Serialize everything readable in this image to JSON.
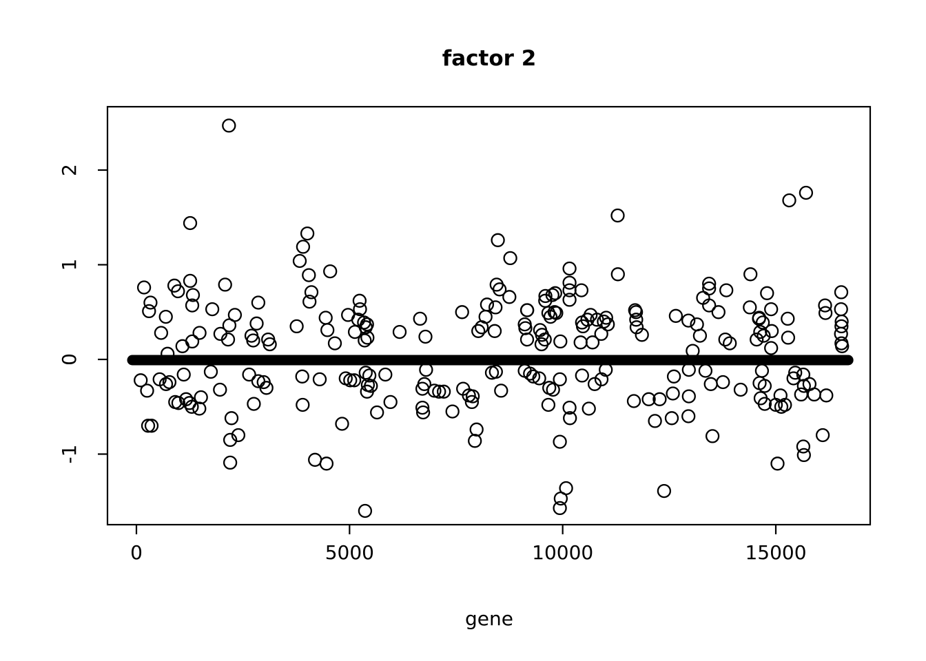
{
  "title": "factor 2",
  "chart_data": {
    "type": "scatter",
    "title": "factor 2",
    "xlabel": "gene",
    "ylabel": "",
    "xlim": [
      -680,
      17220
    ],
    "ylim": [
      -1.79,
      2.65
    ],
    "x_ticks": [
      0,
      5000,
      10000,
      15000
    ],
    "x_tick_labels": [
      "0",
      "5000",
      "10000",
      "15000"
    ],
    "y_ticks": [
      -1,
      0,
      1,
      2
    ],
    "y_tick_labels": [
      "-1",
      "0",
      "1",
      "2"
    ],
    "grid": false,
    "legend": "none",
    "marker": "open-circle",
    "marker_color": "#000000",
    "background": "#ffffff",
    "zero_band": {
      "x_start": 0,
      "x_end": 16700,
      "y": 0,
      "note": "dense run of points with value ~0 for nearly every gene, rendered as a thick black horizontal band"
    },
    "points": [
      [
        180,
        0.76
      ],
      [
        890,
        0.78
      ],
      [
        975,
        0.72
      ],
      [
        1260,
        0.83
      ],
      [
        1325,
        0.68
      ],
      [
        2080,
        0.79
      ],
      [
        1310,
        0.57
      ],
      [
        330,
        0.6
      ],
      [
        295,
        0.51
      ],
      [
        690,
        0.45
      ],
      [
        1780,
        0.53
      ],
      [
        2310,
        0.47
      ],
      [
        2860,
        0.6
      ],
      [
        2170,
        2.47
      ],
      [
        1260,
        1.44
      ],
      [
        580,
        0.28
      ],
      [
        1080,
        0.14
      ],
      [
        1310,
        0.19
      ],
      [
        1480,
        0.28
      ],
      [
        1970,
        0.27
      ],
      [
        2180,
        0.36
      ],
      [
        2150,
        0.21
      ],
      [
        2820,
        0.38
      ],
      [
        2700,
        0.25
      ],
      [
        2740,
        0.2
      ],
      [
        3090,
        0.21
      ],
      [
        3130,
        0.16
      ],
      [
        3760,
        0.35
      ],
      [
        730,
        0.06
      ],
      [
        100,
        -0.22
      ],
      [
        250,
        -0.33
      ],
      [
        545,
        -0.21
      ],
      [
        695,
        -0.26
      ],
      [
        775,
        -0.24
      ],
      [
        1110,
        -0.16
      ],
      [
        1745,
        -0.13
      ],
      [
        1960,
        -0.32
      ],
      [
        910,
        -0.45
      ],
      [
        985,
        -0.46
      ],
      [
        1165,
        -0.42
      ],
      [
        1245,
        -0.46
      ],
      [
        1300,
        -0.5
      ],
      [
        1515,
        -0.4
      ],
      [
        1475,
        -0.52
      ],
      [
        2645,
        -0.16
      ],
      [
        2860,
        -0.23
      ],
      [
        2985,
        -0.24
      ],
      [
        3050,
        -0.3
      ],
      [
        2755,
        -0.47
      ],
      [
        275,
        -0.7
      ],
      [
        355,
        -0.7
      ],
      [
        2230,
        -0.62
      ],
      [
        2200,
        -0.85
      ],
      [
        2390,
        -0.8
      ],
      [
        2200,
        -1.09
      ],
      [
        3890,
        -0.18
      ],
      [
        3900,
        -0.48
      ],
      [
        4010,
        1.33
      ],
      [
        3910,
        1.19
      ],
      [
        3830,
        1.04
      ],
      [
        4045,
        0.89
      ],
      [
        4545,
        0.93
      ],
      [
        4105,
        0.71
      ],
      [
        4060,
        0.61
      ],
      [
        5235,
        0.62
      ],
      [
        5245,
        0.53
      ],
      [
        4440,
        0.44
      ],
      [
        4965,
        0.47
      ],
      [
        5205,
        0.42
      ],
      [
        5340,
        0.39
      ],
      [
        5410,
        0.37
      ],
      [
        5380,
        0.34
      ],
      [
        5125,
        0.29
      ],
      [
        4480,
        0.31
      ],
      [
        4655,
        0.17
      ],
      [
        5420,
        0.23
      ],
      [
        5355,
        0.2
      ],
      [
        6175,
        0.29
      ],
      [
        6655,
        0.43
      ],
      [
        6780,
        0.24
      ],
      [
        7640,
        0.5
      ],
      [
        4300,
        -0.21
      ],
      [
        4910,
        -0.2
      ],
      [
        5015,
        -0.22
      ],
      [
        5110,
        -0.22
      ],
      [
        5380,
        -0.14
      ],
      [
        5465,
        -0.17
      ],
      [
        5430,
        -0.27
      ],
      [
        5500,
        -0.28
      ],
      [
        5410,
        -0.34
      ],
      [
        5840,
        -0.16
      ],
      [
        5960,
        -0.45
      ],
      [
        5645,
        -0.56
      ],
      [
        4825,
        -0.68
      ],
      [
        6795,
        -0.11
      ],
      [
        6755,
        -0.26
      ],
      [
        6710,
        -0.31
      ],
      [
        6710,
        -0.51
      ],
      [
        6725,
        -0.56
      ],
      [
        6990,
        -0.33
      ],
      [
        7100,
        -0.34
      ],
      [
        7210,
        -0.34
      ],
      [
        7415,
        -0.55
      ],
      [
        7665,
        -0.31
      ],
      [
        7800,
        -0.38
      ],
      [
        7890,
        -0.39
      ],
      [
        7870,
        -0.45
      ],
      [
        7980,
        -0.74
      ],
      [
        7940,
        -0.86
      ],
      [
        4190,
        -1.06
      ],
      [
        4460,
        -1.1
      ],
      [
        5365,
        -1.6
      ],
      [
        8480,
        1.26
      ],
      [
        8770,
        1.07
      ],
      [
        11290,
        1.52
      ],
      [
        10160,
        0.96
      ],
      [
        11295,
        0.9
      ],
      [
        10160,
        0.81
      ],
      [
        8450,
        0.79
      ],
      [
        8520,
        0.74
      ],
      [
        8750,
        0.66
      ],
      [
        8225,
        0.58
      ],
      [
        8425,
        0.55
      ],
      [
        8190,
        0.45
      ],
      [
        8100,
        0.34
      ],
      [
        8020,
        0.3
      ],
      [
        8405,
        0.3
      ],
      [
        9595,
        0.67
      ],
      [
        9760,
        0.68
      ],
      [
        9825,
        0.7
      ],
      [
        9590,
        0.62
      ],
      [
        10160,
        0.73
      ],
      [
        10440,
        0.73
      ],
      [
        10160,
        0.63
      ],
      [
        9165,
        0.52
      ],
      [
        9168,
        0.52
      ],
      [
        9665,
        0.49
      ],
      [
        9810,
        0.5
      ],
      [
        9850,
        0.49
      ],
      [
        9715,
        0.45
      ],
      [
        10655,
        0.47
      ],
      [
        11020,
        0.44
      ],
      [
        11720,
        0.5
      ],
      [
        9125,
        0.33
      ],
      [
        9165,
        0.21
      ],
      [
        9470,
        0.31
      ],
      [
        9515,
        0.26
      ],
      [
        9580,
        0.21
      ],
      [
        9505,
        0.16
      ],
      [
        9945,
        0.19
      ],
      [
        9110,
        0.37
      ],
      [
        10455,
        0.39
      ],
      [
        10580,
        0.42
      ],
      [
        10805,
        0.42
      ],
      [
        10965,
        0.4
      ],
      [
        11060,
        0.37
      ],
      [
        10475,
        0.35
      ],
      [
        10420,
        0.18
      ],
      [
        10700,
        0.18
      ],
      [
        10905,
        0.27
      ],
      [
        11700,
        0.52
      ],
      [
        11725,
        0.42
      ],
      [
        11735,
        0.34
      ],
      [
        11860,
        0.26
      ],
      [
        12655,
        0.46
      ],
      [
        12950,
        0.41
      ],
      [
        13150,
        0.37
      ],
      [
        8435,
        -0.13
      ],
      [
        8555,
        -0.33
      ],
      [
        9110,
        -0.12
      ],
      [
        9235,
        -0.15
      ],
      [
        9310,
        -0.18
      ],
      [
        9450,
        -0.2
      ],
      [
        9685,
        -0.3
      ],
      [
        9775,
        -0.32
      ],
      [
        9935,
        -0.21
      ],
      [
        10455,
        -0.17
      ],
      [
        9665,
        -0.48
      ],
      [
        10160,
        -0.51
      ],
      [
        10170,
        -0.62
      ],
      [
        10615,
        -0.52
      ],
      [
        10750,
        -0.26
      ],
      [
        10910,
        -0.21
      ],
      [
        11010,
        -0.11
      ],
      [
        11670,
        -0.44
      ],
      [
        12020,
        -0.42
      ],
      [
        12275,
        -0.42
      ],
      [
        12585,
        -0.36
      ],
      [
        12610,
        -0.18
      ],
      [
        12165,
        -0.65
      ],
      [
        12560,
        -0.62
      ],
      [
        9935,
        -0.87
      ],
      [
        10080,
        -1.36
      ],
      [
        9955,
        -1.47
      ],
      [
        9935,
        -1.57
      ],
      [
        12380,
        -1.39
      ],
      [
        8340,
        -0.14
      ],
      [
        15315,
        1.68
      ],
      [
        15710,
        1.76
      ],
      [
        14405,
        0.9
      ],
      [
        13435,
        0.8
      ],
      [
        13435,
        0.75
      ],
      [
        13840,
        0.73
      ],
      [
        14795,
        0.7
      ],
      [
        13295,
        0.65
      ],
      [
        13435,
        0.57
      ],
      [
        13655,
        0.5
      ],
      [
        14390,
        0.55
      ],
      [
        14610,
        0.44
      ],
      [
        14890,
        0.53
      ],
      [
        15280,
        0.43
      ],
      [
        16155,
        0.57
      ],
      [
        16165,
        0.49
      ],
      [
        16535,
        0.71
      ],
      [
        16530,
        0.53
      ],
      [
        13220,
        0.25
      ],
      [
        13050,
        0.09
      ],
      [
        13815,
        0.21
      ],
      [
        13920,
        0.17
      ],
      [
        14605,
        0.43
      ],
      [
        14695,
        0.39
      ],
      [
        14635,
        0.29
      ],
      [
        14715,
        0.25
      ],
      [
        14550,
        0.21
      ],
      [
        14905,
        0.3
      ],
      [
        15290,
        0.23
      ],
      [
        14890,
        0.12
      ],
      [
        16545,
        0.4
      ],
      [
        16540,
        0.35
      ],
      [
        16530,
        0.27
      ],
      [
        16540,
        0.17
      ],
      [
        16555,
        0.14
      ],
      [
        12960,
        -0.11
      ],
      [
        13350,
        -0.12
      ],
      [
        13475,
        -0.26
      ],
      [
        13760,
        -0.24
      ],
      [
        12960,
        -0.39
      ],
      [
        14175,
        -0.32
      ],
      [
        14675,
        -0.12
      ],
      [
        14620,
        -0.25
      ],
      [
        14740,
        -0.28
      ],
      [
        14645,
        -0.41
      ],
      [
        14740,
        -0.47
      ],
      [
        15000,
        -0.48
      ],
      [
        15130,
        -0.5
      ],
      [
        15110,
        -0.38
      ],
      [
        15215,
        -0.48
      ],
      [
        15455,
        -0.14
      ],
      [
        15645,
        -0.16
      ],
      [
        15415,
        -0.2
      ],
      [
        15660,
        -0.28
      ],
      [
        15790,
        -0.26
      ],
      [
        15595,
        -0.37
      ],
      [
        15900,
        -0.37
      ],
      [
        16185,
        -0.38
      ],
      [
        16100,
        -0.8
      ],
      [
        15645,
        -0.92
      ],
      [
        15660,
        -1.01
      ],
      [
        15040,
        -1.1
      ],
      [
        13515,
        -0.81
      ],
      [
        12950,
        -0.6
      ]
    ]
  }
}
